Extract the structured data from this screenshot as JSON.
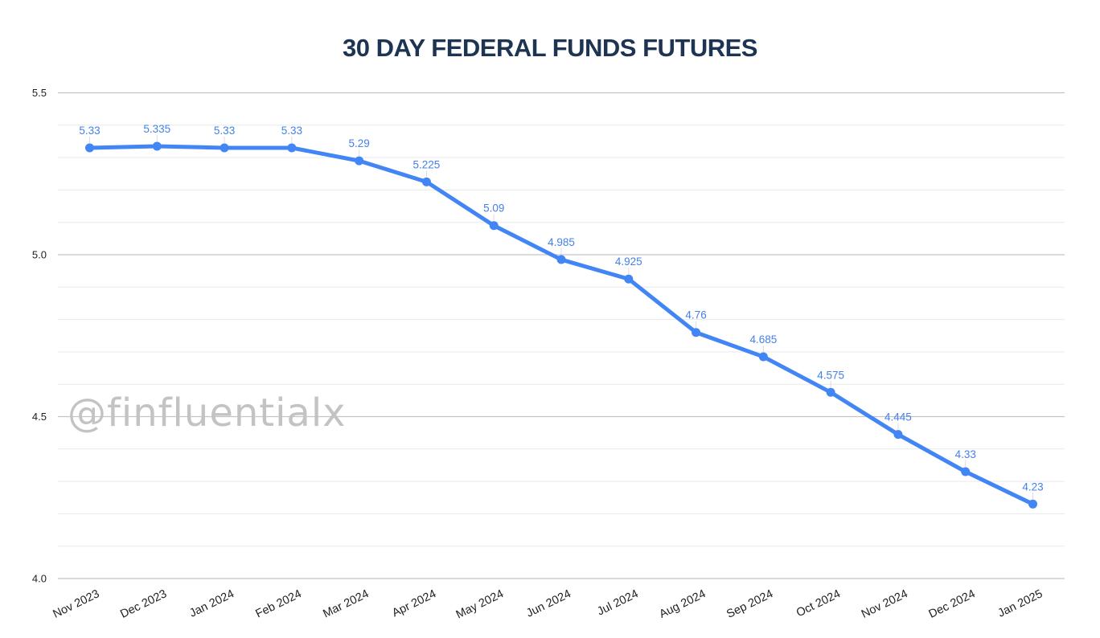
{
  "title": "30 DAY FEDERAL FUNDS FUTURES",
  "watermark": "@finfluentialx",
  "colors": {
    "series": "#4285f4",
    "data_label": "#4581e8",
    "title": "#1d3452",
    "major_gridline": "#c4c4c4",
    "minor_gridline": "#e9e9e9",
    "axis_label": "#1f1f1f",
    "connector": "#dcdcdc",
    "watermark": "#c3c3c3",
    "background": "#ffffff"
  },
  "chart_data": {
    "type": "line",
    "title": "30 DAY FEDERAL FUNDS FUTURES",
    "categories": [
      "Nov 2023",
      "Dec 2023",
      "Jan 2024",
      "Feb 2024",
      "Mar 2024",
      "Apr 2024",
      "May 2024",
      "Jun 2024",
      "Jul 2024",
      "Aug 2024",
      "Sep 2024",
      "Oct 2024",
      "Nov 2024",
      "Dec 2024",
      "Jan 2025"
    ],
    "values": [
      5.33,
      5.335,
      5.33,
      5.33,
      5.29,
      5.225,
      5.09,
      4.985,
      4.925,
      4.76,
      4.685,
      4.575,
      4.445,
      4.33,
      4.23
    ],
    "data_labels": [
      "5.33",
      "5.335",
      "5.33",
      "5.33",
      "5.29",
      "5.225",
      "5.09",
      "4.985",
      "4.925",
      "4.76",
      "4.685",
      "4.575",
      "4.445",
      "4.33",
      "4.23"
    ],
    "xlabel": "",
    "ylabel": "",
    "ylim": [
      4.0,
      5.5
    ],
    "yticks": [
      4.0,
      4.5,
      5.0,
      5.5
    ],
    "ytick_labels": [
      "4.0",
      "4.5",
      "5.0",
      "5.5"
    ],
    "minor_grid_step": 0.1,
    "grid": true,
    "legend": "none",
    "marker": "circle",
    "x_tick_rotation": -26
  }
}
